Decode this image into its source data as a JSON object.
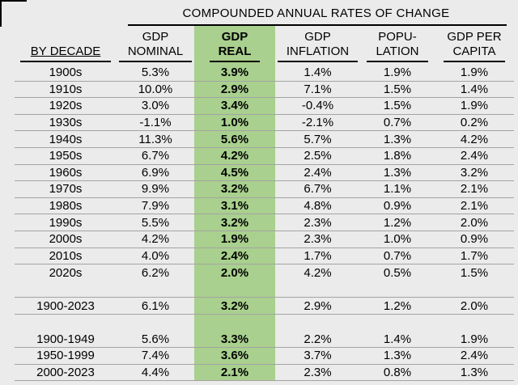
{
  "colors": {
    "background": "#ebebeb",
    "highlight_green": "#a9d08e",
    "separator_gray": "#a3a3a3",
    "text": "#000000"
  },
  "chart_data": {
    "type": "table",
    "title": "COMPOUNDED ANNUAL RATES OF CHANGE",
    "columns": [
      {
        "id": "by-decade",
        "line1": "",
        "line2": "BY DECADE",
        "highlight": false
      },
      {
        "id": "gdp-nominal",
        "line1": "GDP",
        "line2": "NOMINAL",
        "highlight": false
      },
      {
        "id": "gdp-real",
        "line1": "GDP",
        "line2": "REAL",
        "highlight": true
      },
      {
        "id": "gdp-inflation",
        "line1": "GDP",
        "line2": "INFLATION",
        "highlight": false
      },
      {
        "id": "population",
        "line1": "POPU-",
        "line2": "LATION",
        "highlight": false
      },
      {
        "id": "gdp-per-capita",
        "line1": "GDP PER",
        "line2": "CAPITA",
        "highlight": false
      }
    ],
    "rows": [
      {
        "label": "1900s",
        "values": [
          "5.3%",
          "3.9%",
          "1.4%",
          "1.9%",
          "1.9%"
        ],
        "blank": false,
        "separator": true
      },
      {
        "label": "1910s",
        "values": [
          "10.0%",
          "2.9%",
          "7.1%",
          "1.5%",
          "1.4%"
        ],
        "blank": false,
        "separator": true
      },
      {
        "label": "1920s",
        "values": [
          "3.0%",
          "3.4%",
          "-0.4%",
          "1.5%",
          "1.9%"
        ],
        "blank": false,
        "separator": true
      },
      {
        "label": "1930s",
        "values": [
          "-1.1%",
          "1.0%",
          "-2.1%",
          "0.7%",
          "0.2%"
        ],
        "blank": false,
        "separator": true
      },
      {
        "label": "1940s",
        "values": [
          "11.3%",
          "5.6%",
          "5.7%",
          "1.3%",
          "4.2%"
        ],
        "blank": false,
        "separator": true
      },
      {
        "label": "1950s",
        "values": [
          "6.7%",
          "4.2%",
          "2.5%",
          "1.8%",
          "2.4%"
        ],
        "blank": false,
        "separator": true
      },
      {
        "label": "1960s",
        "values": [
          "6.9%",
          "4.5%",
          "2.4%",
          "1.3%",
          "3.2%"
        ],
        "blank": false,
        "separator": true
      },
      {
        "label": "1970s",
        "values": [
          "9.9%",
          "3.2%",
          "6.7%",
          "1.1%",
          "2.1%"
        ],
        "blank": false,
        "separator": true
      },
      {
        "label": "1980s",
        "values": [
          "7.9%",
          "3.1%",
          "4.8%",
          "0.9%",
          "2.1%"
        ],
        "blank": false,
        "separator": true
      },
      {
        "label": "1990s",
        "values": [
          "5.5%",
          "3.2%",
          "2.3%",
          "1.2%",
          "2.0%"
        ],
        "blank": false,
        "separator": true
      },
      {
        "label": "2000s",
        "values": [
          "4.2%",
          "1.9%",
          "2.3%",
          "1.0%",
          "0.9%"
        ],
        "blank": false,
        "separator": true
      },
      {
        "label": "2010s",
        "values": [
          "4.0%",
          "2.4%",
          "1.7%",
          "0.7%",
          "1.7%"
        ],
        "blank": false,
        "separator": true
      },
      {
        "label": "2020s",
        "values": [
          "6.2%",
          "2.0%",
          "4.2%",
          "0.5%",
          "1.5%"
        ],
        "blank": false,
        "separator": false
      },
      {
        "label": "",
        "values": [
          "",
          "",
          "",
          "",
          ""
        ],
        "blank": true,
        "separator": true
      },
      {
        "label": "1900-2023",
        "values": [
          "6.1%",
          "3.2%",
          "2.9%",
          "1.2%",
          "2.0%"
        ],
        "blank": false,
        "separator": true
      },
      {
        "label": "",
        "values": [
          "",
          "",
          "",
          "",
          ""
        ],
        "blank": true,
        "separator": false
      },
      {
        "label": "1900-1949",
        "values": [
          "5.6%",
          "3.3%",
          "2.2%",
          "1.4%",
          "1.9%"
        ],
        "blank": false,
        "separator": true
      },
      {
        "label": "1950-1999",
        "values": [
          "7.4%",
          "3.6%",
          "3.7%",
          "1.3%",
          "2.4%"
        ],
        "blank": false,
        "separator": true
      },
      {
        "label": "2000-2023",
        "values": [
          "4.4%",
          "2.1%",
          "2.3%",
          "0.8%",
          "1.3%"
        ],
        "blank": false,
        "separator": true
      }
    ]
  }
}
